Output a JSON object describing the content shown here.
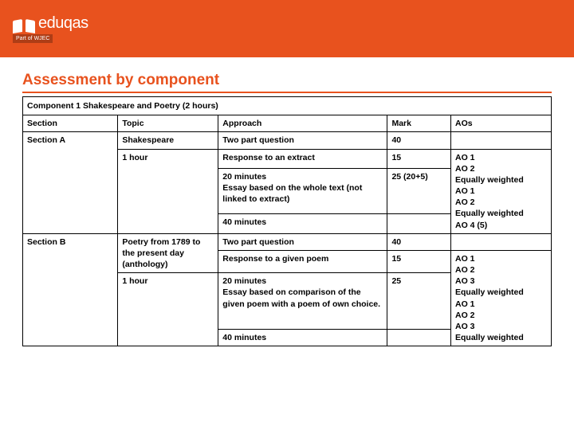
{
  "brand": {
    "name": "eduqas",
    "sub": "Part of WJEC"
  },
  "title": "Assessment by component",
  "header": {
    "component": "Component 1 Shakespeare and Poetry (2 hours)",
    "section": "Section",
    "topic": "Topic",
    "approach": "Approach",
    "mark": "Mark",
    "aos": "AOs"
  },
  "secA": {
    "section": "Section A",
    "topic1": "Shakespeare",
    "topic2": "1 hour",
    "approach1": "Two part question",
    "approach2": "Response to an extract",
    "approach3a": "20 minutes",
    "approach3b": "Essay based on the whole text (not linked to extract)",
    "approach4": "40 minutes",
    "mark1": "40",
    "mark2": "15",
    "mark3": "25 (20+5)",
    "aos": "AO 1\nAO 2\nEqually weighted\nAO 1\nAO 2\nEqually weighted\nAO 4 (5)"
  },
  "secB": {
    "section": "Section B",
    "topic1": "Poetry from 1789 to the present day (anthology)",
    "topic2": "1 hour",
    "approach1": "Two part question",
    "approach2": "Response to a given poem",
    "approach3a": "20 minutes",
    "approach3b": "Essay based on comparison of the given poem with a poem of own choice.",
    "approach4": "40 minutes",
    "mark1": "40",
    "mark2": "15",
    "mark3": "25",
    "aos": "AO 1\nAO 2\nAO 3\nEqually weighted\nAO 1\nAO 2\nAO 3\nEqually weighted"
  },
  "colors": {
    "accent": "#e8521e",
    "border": "#000000",
    "bg": "#ffffff"
  }
}
